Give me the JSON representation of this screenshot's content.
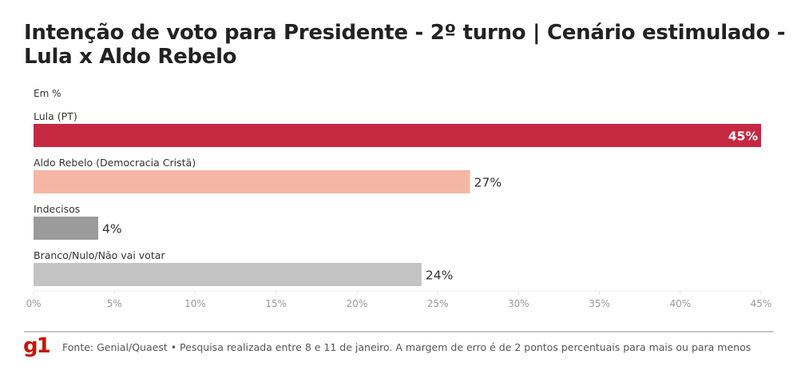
{
  "header": {
    "title": "Intenção de voto para Presidente - 2º turno | Cenário estimulado - Lula x Aldo Rebelo",
    "subtitle": "Em %"
  },
  "footer": {
    "logo": "g1",
    "source": "Fonte: Genial/Quaest • Pesquisa realizada entre 8 e 11 de janeiro. A margem de erro é de 2 pontos percentuais para mais ou para menos"
  },
  "chart_data": {
    "type": "bar",
    "orientation": "horizontal",
    "title": "Intenção de voto para Presidente - 2º turno | Cenário estimulado - Lula x Aldo Rebelo",
    "subtitle": "Em %",
    "xlabel": "",
    "ylabel": "",
    "xlim": [
      0,
      45
    ],
    "grid": false,
    "categories": [
      "Lula (PT)",
      "Aldo Rebelo (Democracia Cristã)",
      "Indecisos",
      "Branco/Nulo/Não vai votar"
    ],
    "values": [
      45,
      27,
      4,
      24
    ],
    "value_labels": [
      "45%",
      "27%",
      "4%",
      "24%"
    ],
    "colors": [
      "#c62842",
      "#f5b7a5",
      "#9b9b9b",
      "#c4c4c4"
    ],
    "ticks": [
      0,
      5,
      10,
      15,
      20,
      25,
      30,
      35,
      40,
      45
    ],
    "tick_labels": [
      "0%",
      "5%",
      "10%",
      "15%",
      "20%",
      "25%",
      "30%",
      "35%",
      "40%",
      "45%"
    ]
  }
}
